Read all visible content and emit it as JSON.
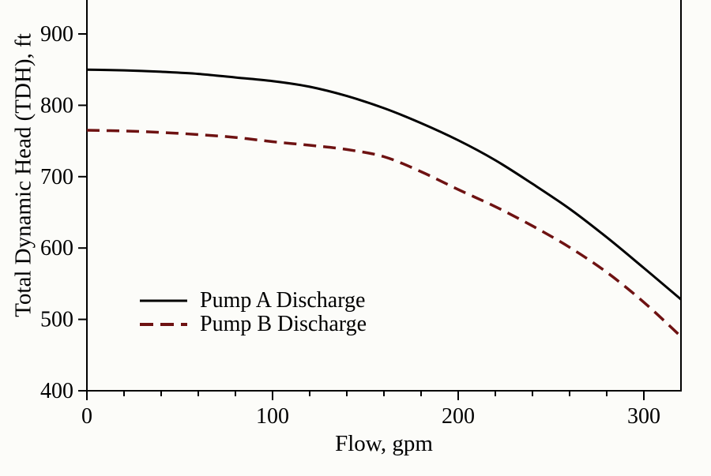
{
  "figure": {
    "background_color": "#fcfcf9",
    "axis_color": "#000000",
    "text_color": "#000000"
  },
  "chart_data": {
    "type": "line",
    "title": "",
    "xlabel": "Flow, gpm",
    "ylabel": "Total Dynamic Head (TDH), ft",
    "xlim": [
      0,
      320
    ],
    "ylim": [
      400,
      948
    ],
    "grid": false,
    "legend_position": "inside-lower-left",
    "x_major_ticks": [
      0,
      100,
      200,
      300
    ],
    "x_minor_step": 20,
    "y_major_ticks": [
      900,
      800,
      700,
      600,
      500,
      400
    ],
    "series": [
      {
        "name": "Pump A Discharge",
        "style": "solid",
        "color": "#000000",
        "points": [
          [
            0,
            850
          ],
          [
            20,
            849
          ],
          [
            40,
            847
          ],
          [
            60,
            844
          ],
          [
            80,
            839
          ],
          [
            100,
            834
          ],
          [
            120,
            826
          ],
          [
            140,
            813
          ],
          [
            160,
            796
          ],
          [
            180,
            775
          ],
          [
            200,
            751
          ],
          [
            220,
            723
          ],
          [
            240,
            690
          ],
          [
            260,
            655
          ],
          [
            280,
            615
          ],
          [
            300,
            572
          ],
          [
            320,
            528
          ]
        ]
      },
      {
        "name": "Pump B Discharge",
        "style": "dashed",
        "color": "#6e1212",
        "points": [
          [
            0,
            765
          ],
          [
            20,
            764
          ],
          [
            40,
            762
          ],
          [
            60,
            759
          ],
          [
            80,
            755
          ],
          [
            100,
            749
          ],
          [
            120,
            744
          ],
          [
            140,
            738
          ],
          [
            160,
            728
          ],
          [
            180,
            707
          ],
          [
            200,
            682
          ],
          [
            220,
            658
          ],
          [
            240,
            631
          ],
          [
            260,
            601
          ],
          [
            280,
            566
          ],
          [
            300,
            524
          ],
          [
            320,
            476
          ]
        ]
      }
    ]
  }
}
